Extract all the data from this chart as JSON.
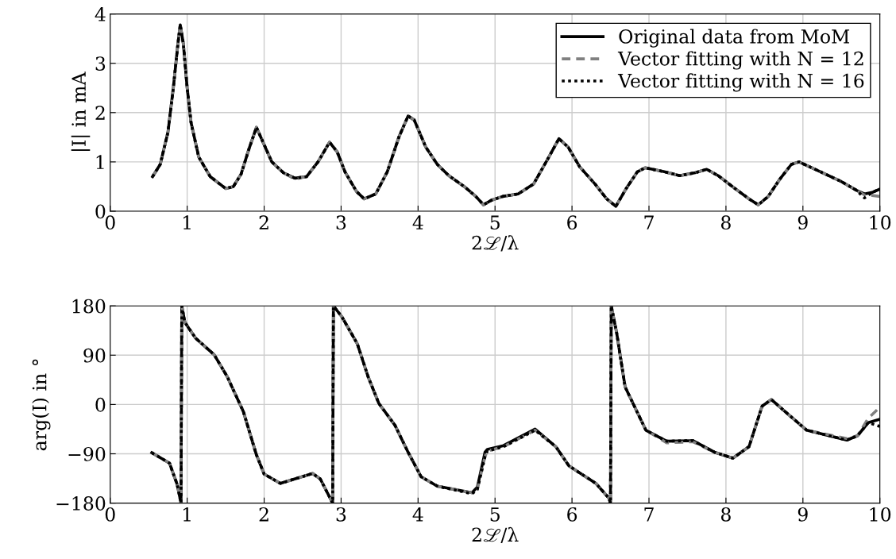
{
  "chart_data": [
    {
      "type": "line",
      "ylabel": "|I| in mA",
      "xlabel": "2ℒ/λ",
      "xlim": [
        0,
        10
      ],
      "xticks": [
        0,
        1,
        2,
        3,
        4,
        5,
        6,
        7,
        8,
        9,
        10
      ],
      "ylim": [
        0,
        4
      ],
      "yticks": [
        0,
        1,
        2,
        3,
        4
      ],
      "grid": true,
      "legend": "top right",
      "marker": "none",
      "x": [
        0.55,
        0.65,
        0.75,
        0.82,
        0.88,
        0.91,
        0.95,
        1.0,
        1.05,
        1.15,
        1.3,
        1.5,
        1.6,
        1.7,
        1.8,
        1.9,
        2.0,
        2.1,
        2.25,
        2.4,
        2.55,
        2.7,
        2.85,
        2.95,
        3.05,
        3.2,
        3.3,
        3.45,
        3.6,
        3.75,
        3.87,
        3.95,
        4.1,
        4.25,
        4.4,
        4.6,
        4.75,
        4.85,
        4.95,
        5.1,
        5.3,
        5.5,
        5.7,
        5.83,
        5.95,
        6.1,
        6.3,
        6.45,
        6.57,
        6.7,
        6.85,
        6.95,
        7.2,
        7.4,
        7.6,
        7.75,
        7.9,
        8.1,
        8.3,
        8.42,
        8.55,
        8.7,
        8.85,
        8.95,
        9.2,
        9.5,
        9.7,
        9.8,
        9.9,
        10
      ],
      "series": [
        {
          "name": "Original data from MoM",
          "color": "#000000",
          "line_style": "solid",
          "values": [
            0.7,
            0.95,
            1.6,
            2.5,
            3.4,
            3.78,
            3.4,
            2.5,
            1.8,
            1.1,
            0.7,
            0.46,
            0.5,
            0.75,
            1.25,
            1.7,
            1.35,
            1.0,
            0.78,
            0.67,
            0.7,
            1.0,
            1.4,
            1.2,
            0.8,
            0.4,
            0.25,
            0.35,
            0.8,
            1.5,
            1.93,
            1.85,
            1.3,
            0.95,
            0.72,
            0.5,
            0.3,
            0.13,
            0.22,
            0.3,
            0.35,
            0.55,
            1.1,
            1.47,
            1.3,
            0.9,
            0.55,
            0.25,
            0.1,
            0.45,
            0.8,
            0.88,
            0.8,
            0.72,
            0.78,
            0.85,
            0.72,
            0.48,
            0.25,
            0.13,
            0.3,
            0.65,
            0.95,
            1.0,
            0.82,
            0.6,
            0.42,
            0.35,
            0.38,
            0.45
          ]
        },
        {
          "name": "Vector fitting with N = 12",
          "color": "#808080",
          "line_style": "dashed",
          "values": [
            0.7,
            0.95,
            1.6,
            2.5,
            3.4,
            3.78,
            3.4,
            2.5,
            1.8,
            1.1,
            0.7,
            0.46,
            0.5,
            0.75,
            1.25,
            1.7,
            1.35,
            1.0,
            0.78,
            0.65,
            0.7,
            1.0,
            1.4,
            1.2,
            0.8,
            0.4,
            0.25,
            0.35,
            0.8,
            1.5,
            1.93,
            1.85,
            1.3,
            0.95,
            0.72,
            0.5,
            0.3,
            0.13,
            0.22,
            0.3,
            0.35,
            0.55,
            1.1,
            1.47,
            1.3,
            0.9,
            0.55,
            0.25,
            0.1,
            0.45,
            0.8,
            0.88,
            0.8,
            0.72,
            0.78,
            0.85,
            0.72,
            0.48,
            0.25,
            0.13,
            0.3,
            0.65,
            0.95,
            1.0,
            0.82,
            0.6,
            0.42,
            0.33,
            0.32,
            0.3
          ]
        },
        {
          "name": "Vector fitting with N = 16",
          "color": "#000000",
          "line_style": "dotted",
          "values": [
            0.7,
            0.95,
            1.6,
            2.5,
            3.4,
            3.78,
            3.4,
            2.5,
            1.8,
            1.1,
            0.7,
            0.46,
            0.5,
            0.75,
            1.25,
            1.7,
            1.35,
            1.0,
            0.78,
            0.67,
            0.7,
            1.0,
            1.4,
            1.2,
            0.8,
            0.4,
            0.25,
            0.35,
            0.8,
            1.5,
            1.93,
            1.85,
            1.3,
            0.95,
            0.72,
            0.5,
            0.3,
            0.13,
            0.22,
            0.3,
            0.35,
            0.55,
            1.1,
            1.47,
            1.3,
            0.9,
            0.55,
            0.25,
            0.1,
            0.45,
            0.8,
            0.88,
            0.8,
            0.72,
            0.78,
            0.85,
            0.72,
            0.48,
            0.25,
            0.13,
            0.3,
            0.65,
            0.95,
            1.0,
            0.82,
            0.6,
            0.42,
            0.27,
            0.38,
            0.45
          ]
        }
      ]
    },
    {
      "type": "line",
      "ylabel": "arg(I) in °",
      "xlabel": "2ℒ/λ",
      "xlim": [
        0,
        10
      ],
      "xticks": [
        0,
        1,
        2,
        3,
        4,
        5,
        6,
        7,
        8,
        9,
        10
      ],
      "ylim": [
        -180,
        180
      ],
      "yticks": [
        {
          "value": -180,
          "label": "−180"
        },
        {
          "value": -90,
          "label": "−90"
        },
        0,
        90,
        180
      ],
      "grid": true,
      "marker": "none",
      "x": [
        0.54,
        0.77,
        0.87,
        0.92,
        0.93,
        0.97,
        1.11,
        1.35,
        1.52,
        1.73,
        1.9,
        2.0,
        2.21,
        2.63,
        2.73,
        2.89,
        2.9,
        3.01,
        3.21,
        3.35,
        3.49,
        3.7,
        3.87,
        4.04,
        4.25,
        4.7,
        4.77,
        4.87,
        4.9,
        5.11,
        5.52,
        5.79,
        5.96,
        6.31,
        6.48,
        6.5,
        6.51,
        6.58,
        6.69,
        6.96,
        7.23,
        7.57,
        7.85,
        8.09,
        8.3,
        8.47,
        8.59,
        8.81,
        9.05,
        9.57,
        9.71,
        9.85,
        10
      ],
      "series": [
        {
          "color": "#000000",
          "line_style": "solid",
          "values": [
            -88,
            -107,
            -146,
            -180,
            180,
            150,
            121,
            91,
            51,
            -13,
            -92,
            -127,
            -144,
            -126,
            -136,
            -180,
            180,
            160,
            111,
            51,
            2,
            -38,
            -87,
            -132,
            -149,
            -161,
            -151,
            -87,
            -82,
            -75,
            -45,
            -77,
            -112,
            -144,
            -171,
            -180,
            180,
            131,
            32,
            -47,
            -67,
            -66,
            -87,
            -98,
            -77,
            -3,
            9,
            -18,
            -47,
            -65,
            -57,
            -33,
            -27
          ]
        },
        {
          "color": "#808080",
          "line_style": "dashed",
          "values": [
            -88,
            -107,
            -146,
            -180,
            180,
            150,
            121,
            91,
            51,
            -13,
            -92,
            -127,
            -144,
            -126,
            -136,
            -180,
            180,
            160,
            111,
            51,
            2,
            -38,
            -87,
            -132,
            -149,
            -161,
            -155,
            -95,
            -85,
            -77,
            -47,
            -77,
            -112,
            -144,
            -171,
            -180,
            180,
            131,
            32,
            -47,
            -70,
            -68,
            -87,
            -98,
            -77,
            -3,
            9,
            -18,
            -47,
            -62,
            -57,
            -25,
            -5
          ]
        },
        {
          "color": "#000000",
          "line_style": "dotted",
          "values": [
            -88,
            -107,
            -146,
            -180,
            180,
            150,
            121,
            91,
            51,
            -13,
            -92,
            -127,
            -144,
            -126,
            -136,
            -180,
            180,
            160,
            111,
            51,
            2,
            -38,
            -87,
            -132,
            -149,
            -163,
            -155,
            -95,
            -85,
            -77,
            -47,
            -77,
            -112,
            -144,
            -171,
            -180,
            180,
            131,
            32,
            -47,
            -67,
            -66,
            -87,
            -98,
            -77,
            -3,
            9,
            -18,
            -47,
            -65,
            -57,
            -33,
            -40
          ]
        }
      ]
    }
  ]
}
